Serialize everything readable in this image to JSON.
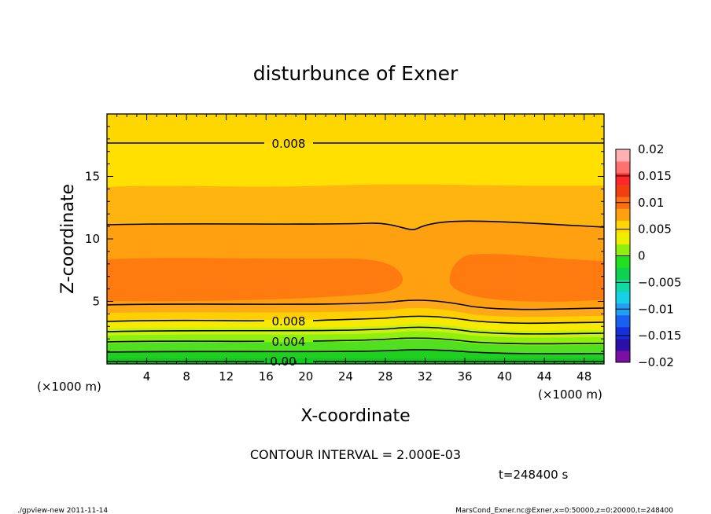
{
  "chart_data": {
    "type": "contour",
    "title": "disturbunce of Exner",
    "xlabel": "X-coordinate",
    "ylabel": "Z-coordinate",
    "x_unit_left": "(×1000 m)",
    "x_unit_right": "(×1000 m)",
    "xlim": [
      0,
      50
    ],
    "ylim": [
      0,
      20
    ],
    "xticks": [
      4,
      8,
      12,
      16,
      20,
      24,
      28,
      32,
      36,
      40,
      44,
      48
    ],
    "yticks": [
      5,
      10,
      15
    ],
    "contour_interval_text": "CONTOUR INTERVAL = 2.000E-03",
    "contour_labels": [
      "0.008",
      "0.008",
      "0.004",
      "0.00"
    ],
    "time_text": "t=248400 s",
    "colorbar": {
      "tick_labels": [
        "0.02",
        "0.015",
        "0.01",
        "0.005",
        "0",
        "−0.005",
        "−0.01",
        "−0.015",
        "−0.02"
      ],
      "range": [
        -0.02,
        0.02
      ],
      "colors": [
        "#7a0fa6",
        "#2a10a8",
        "#1530d8",
        "#1a60f0",
        "#1f9ff5",
        "#17d0e8",
        "#10d8a0",
        "#10d050",
        "#20e020",
        "#8ff010",
        "#f0ee00",
        "#ffd700",
        "#ffa010",
        "#ff7010",
        "#f04010",
        "#ff2828",
        "#ff7070",
        "#ffb0b0"
      ]
    },
    "layers": [
      {
        "z_range": [
          17.5,
          20
        ],
        "value": 0.0085
      },
      {
        "z_range": [
          14.2,
          17.5
        ],
        "value": 0.0075
      },
      {
        "z_range": [
          11.2,
          14.2
        ],
        "value": 0.0095
      },
      {
        "z_range": [
          5.0,
          11.2
        ],
        "value": 0.0105
      },
      {
        "z_range": [
          5.3,
          8.5
        ],
        "value": 0.0125,
        "note": "two cells, x 0–30.5 and x 34–50"
      },
      {
        "z_range": [
          4.0,
          5.0
        ],
        "value": 0.009
      },
      {
        "z_range": [
          3.5,
          4.0
        ],
        "value": 0.007
      },
      {
        "z_range": [
          2.5,
          3.5
        ],
        "value": 0.005
      },
      {
        "z_range": [
          0,
          2.5
        ],
        "value": 0.002
      }
    ]
  },
  "footer": {
    "left": "./gpview-new  2011-11-14",
    "right": "MarsCond_Exner.nc@Exner,x=0:50000,z=0:20000,t=248400"
  }
}
